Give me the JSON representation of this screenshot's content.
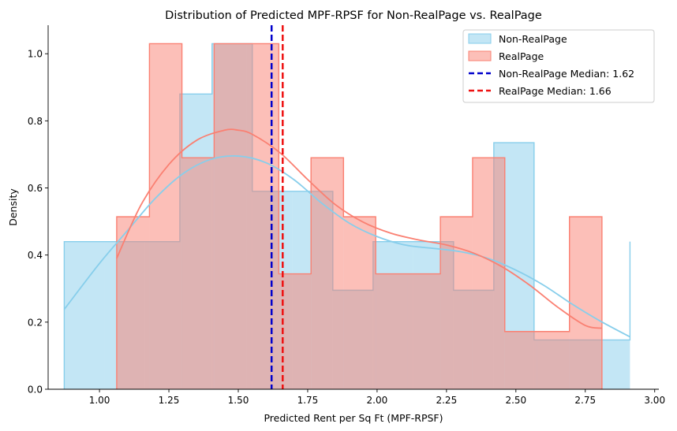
{
  "chart_data": {
    "type": "histogram",
    "title": "Distribution of Predicted MPF-RPSF for Non-RealPage vs. RealPage",
    "xlabel": "Predicted Rent per Sq Ft (MPF-RPSF)",
    "ylabel": "Density",
    "xlim": [
      0.815,
      3.015
    ],
    "ylim": [
      0,
      1.085
    ],
    "xticks": [
      1.0,
      1.25,
      1.5,
      1.75,
      2.0,
      2.25,
      2.5,
      2.75,
      3.0
    ],
    "xtick_labels": [
      "1.00",
      "1.25",
      "1.50",
      "1.75",
      "2.00",
      "2.25",
      "2.50",
      "2.75",
      "3.00"
    ],
    "yticks": [
      0.0,
      0.2,
      0.4,
      0.6,
      0.8,
      1.0
    ],
    "ytick_labels": [
      "0.0",
      "0.2",
      "0.4",
      "0.6",
      "0.8",
      "1.0"
    ],
    "legend_position": "top-right",
    "series": [
      {
        "name": "Non-RealPage",
        "color": "#87ceeb",
        "fill": "rgba(135,206,235,0.5)",
        "edges": [
          0.873,
          1.0185,
          1.164,
          1.2895,
          1.4055,
          1.5505,
          1.6955,
          1.8405,
          1.9855,
          2.1305,
          2.2755,
          2.4205,
          2.5655,
          2.7105,
          2.911
        ],
        "density": [
          0.44,
          0.44,
          0.44,
          0.88,
          1.03,
          0.59,
          0.59,
          0.295,
          0.44,
          0.44,
          0.295,
          0.735,
          0.147,
          0.147,
          0.44
        ],
        "kde_x": [
          0.873,
          1.0,
          1.1,
          1.2,
          1.3,
          1.4,
          1.5,
          1.6,
          1.7,
          1.8,
          1.9,
          2.0,
          2.1,
          2.2,
          2.3,
          2.4,
          2.5,
          2.6,
          2.7,
          2.8,
          2.911
        ],
        "kde_y": [
          0.238,
          0.375,
          0.472,
          0.568,
          0.642,
          0.685,
          0.695,
          0.675,
          0.625,
          0.555,
          0.495,
          0.455,
          0.43,
          0.42,
          0.41,
          0.39,
          0.355,
          0.31,
          0.255,
          0.205,
          0.156
        ]
      },
      {
        "name": "RealPage",
        "color": "#fa8072",
        "fill": "rgba(250,128,114,0.5)",
        "edges": [
          1.062,
          1.18,
          1.297,
          1.413,
          1.53,
          1.646,
          1.762,
          1.879,
          1.995,
          2.111,
          2.228,
          2.344,
          2.46,
          2.577,
          2.693,
          2.81
        ],
        "density": [
          0.514,
          1.03,
          0.69,
          1.03,
          1.03,
          0.344,
          0.69,
          0.514,
          0.344,
          0.344,
          0.514,
          0.69,
          0.172,
          0.172,
          0.514
        ],
        "kde_x": [
          1.062,
          1.15,
          1.25,
          1.35,
          1.45,
          1.5,
          1.55,
          1.65,
          1.75,
          1.85,
          1.95,
          2.05,
          2.15,
          2.25,
          2.35,
          2.45,
          2.55,
          2.65,
          2.75,
          2.81
        ],
        "kde_y": [
          0.39,
          0.55,
          0.67,
          0.742,
          0.772,
          0.772,
          0.76,
          0.705,
          0.625,
          0.55,
          0.498,
          0.465,
          0.445,
          0.43,
          0.405,
          0.365,
          0.31,
          0.245,
          0.19,
          0.182
        ]
      }
    ],
    "medians": [
      {
        "label": "Non-RealPage Median: 1.62",
        "value": 1.62,
        "color": "#0000cc"
      },
      {
        "label": "RealPage Median: 1.66",
        "value": 1.66,
        "color": "#ee1111"
      }
    ]
  }
}
